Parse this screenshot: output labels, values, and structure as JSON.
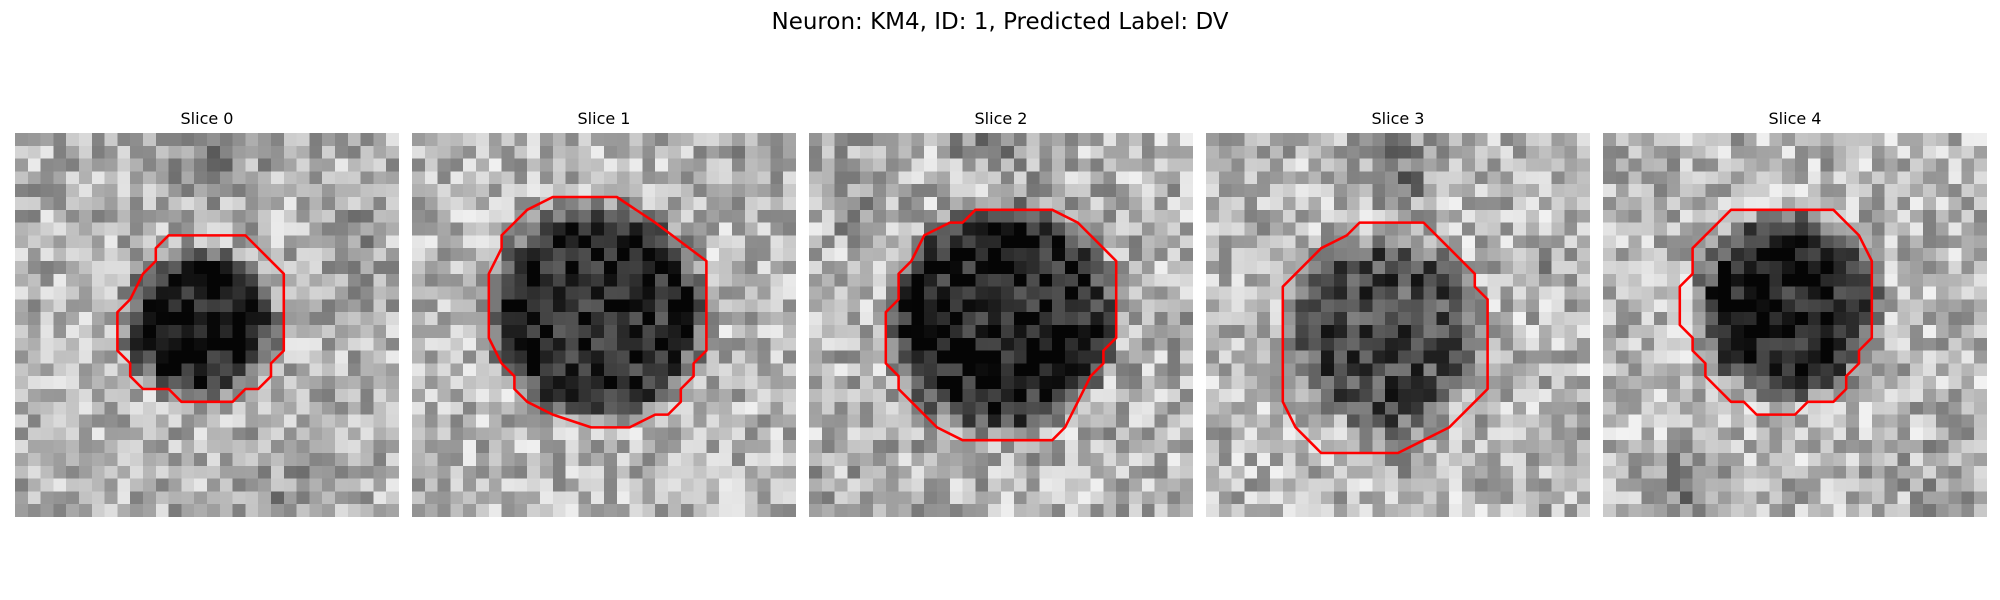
{
  "figure": {
    "title": "Neuron: KM4, ID: 1, Predicted Label: DV"
  },
  "grid_size": 30,
  "contour_color": "#ff0000",
  "panels": [
    {
      "title": "Slice 0",
      "seed": 11,
      "base": 0.7,
      "noise": 0.22,
      "blob": {
        "cx": 14.5,
        "cy": 15.0,
        "r": 5.5,
        "darkness": 0.62
      },
      "extras": [
        {
          "cx": 15,
          "cy": 1,
          "r": 6,
          "d": 0.22
        },
        {
          "cx": 26,
          "cy": 9,
          "r": 4,
          "d": 0.18
        },
        {
          "cx": 20,
          "cy": 28,
          "r": 5,
          "d": 0.12
        }
      ],
      "contour": [
        [
          12,
          8
        ],
        [
          18,
          8
        ],
        [
          21,
          11
        ],
        [
          21,
          17
        ],
        [
          20,
          18
        ],
        [
          20,
          19
        ],
        [
          19,
          20
        ],
        [
          18,
          20
        ],
        [
          17,
          21
        ],
        [
          13,
          21
        ],
        [
          12,
          20
        ],
        [
          10,
          20
        ],
        [
          9,
          19
        ],
        [
          9,
          18
        ],
        [
          8,
          17
        ],
        [
          8,
          14
        ],
        [
          9,
          13
        ],
        [
          10,
          11
        ],
        [
          11,
          10
        ],
        [
          11,
          9
        ]
      ]
    },
    {
      "title": "Slice 1",
      "seed": 23,
      "base": 0.72,
      "noise": 0.22,
      "blob": {
        "cx": 14.5,
        "cy": 14.0,
        "r": 8.2,
        "darkness": 0.55
      },
      "extras": [
        {
          "cx": 25,
          "cy": 2,
          "r": 4,
          "d": 0.1
        }
      ],
      "contour": [
        [
          11,
          5
        ],
        [
          16,
          5
        ],
        [
          19,
          7
        ],
        [
          23,
          10
        ],
        [
          23,
          17
        ],
        [
          22,
          18
        ],
        [
          22,
          19
        ],
        [
          21,
          20
        ],
        [
          21,
          21
        ],
        [
          20,
          22
        ],
        [
          19,
          22
        ],
        [
          17,
          23
        ],
        [
          14,
          23
        ],
        [
          11,
          22
        ],
        [
          9,
          21
        ],
        [
          8,
          20
        ],
        [
          8,
          19
        ],
        [
          7,
          18
        ],
        [
          6,
          16
        ],
        [
          6,
          11
        ],
        [
          7,
          9
        ],
        [
          7,
          8
        ],
        [
          8,
          7
        ],
        [
          9,
          6
        ]
      ]
    },
    {
      "title": "Slice 2",
      "seed": 37,
      "base": 0.7,
      "noise": 0.24,
      "blob": {
        "cx": 15.0,
        "cy": 14.5,
        "r": 8.6,
        "darkness": 0.58
      },
      "extras": [
        {
          "cx": 15,
          "cy": 0,
          "r": 5,
          "d": 0.22
        },
        {
          "cx": 3,
          "cy": 6,
          "r": 3,
          "d": 0.12
        }
      ],
      "contour": [
        [
          14,
          6
        ],
        [
          19,
          6
        ],
        [
          21,
          7
        ],
        [
          22,
          8
        ],
        [
          24,
          10
        ],
        [
          24,
          16
        ],
        [
          23,
          17
        ],
        [
          23,
          18
        ],
        [
          22,
          19
        ],
        [
          21,
          21
        ],
        [
          20,
          23
        ],
        [
          19,
          24
        ],
        [
          12,
          24
        ],
        [
          10,
          23
        ],
        [
          8,
          21
        ],
        [
          7,
          20
        ],
        [
          7,
          19
        ],
        [
          6,
          18
        ],
        [
          6,
          14
        ],
        [
          7,
          13
        ],
        [
          7,
          11
        ],
        [
          8,
          10
        ],
        [
          9,
          8
        ],
        [
          11,
          7
        ],
        [
          12,
          7
        ],
        [
          13,
          6
        ]
      ]
    },
    {
      "title": "Slice 3",
      "seed": 53,
      "base": 0.72,
      "noise": 0.23,
      "blob": {
        "cx": 14.0,
        "cy": 15.5,
        "r": 7.2,
        "darkness": 0.42
      },
      "extras": [
        {
          "cx": 15,
          "cy": 3,
          "r": 4.5,
          "d": 0.3
        },
        {
          "cx": 15,
          "cy": 24,
          "r": 4,
          "d": 0.2
        },
        {
          "cx": 27,
          "cy": 11,
          "r": 2.5,
          "d": 0.12
        }
      ],
      "contour": [
        [
          12,
          7
        ],
        [
          17,
          7
        ],
        [
          19,
          9
        ],
        [
          21,
          11
        ],
        [
          21,
          12
        ],
        [
          22,
          13
        ],
        [
          22,
          20
        ],
        [
          21,
          21
        ],
        [
          19,
          23
        ],
        [
          17,
          24
        ],
        [
          15,
          25
        ],
        [
          13,
          25
        ],
        [
          9,
          25
        ],
        [
          8,
          24
        ],
        [
          7,
          23
        ],
        [
          6,
          21
        ],
        [
          6,
          19
        ],
        [
          6,
          12
        ],
        [
          7,
          11
        ],
        [
          9,
          9
        ],
        [
          11,
          8
        ]
      ]
    },
    {
      "title": "Slice 4",
      "seed": 71,
      "base": 0.72,
      "noise": 0.23,
      "blob": {
        "cx": 14.5,
        "cy": 13.5,
        "r": 6.8,
        "darkness": 0.6
      },
      "extras": [
        {
          "cx": 6,
          "cy": 28,
          "r": 4,
          "d": 0.25
        },
        {
          "cx": 27,
          "cy": 28,
          "r": 5,
          "d": 0.15
        }
      ],
      "contour": [
        [
          10,
          6
        ],
        [
          11,
          6
        ],
        [
          18,
          6
        ],
        [
          19,
          7
        ],
        [
          20,
          8
        ],
        [
          21,
          10
        ],
        [
          21,
          16
        ],
        [
          20,
          17
        ],
        [
          20,
          18
        ],
        [
          19,
          19
        ],
        [
          19,
          20
        ],
        [
          18,
          21
        ],
        [
          16,
          21
        ],
        [
          15,
          22
        ],
        [
          12,
          22
        ],
        [
          11,
          21
        ],
        [
          10,
          21
        ],
        [
          9,
          20
        ],
        [
          8,
          19
        ],
        [
          8,
          18
        ],
        [
          7,
          17
        ],
        [
          7,
          16
        ],
        [
          6,
          15
        ],
        [
          6,
          12
        ],
        [
          7,
          11
        ],
        [
          7,
          9
        ],
        [
          8,
          8
        ],
        [
          9,
          7
        ]
      ]
    }
  ]
}
